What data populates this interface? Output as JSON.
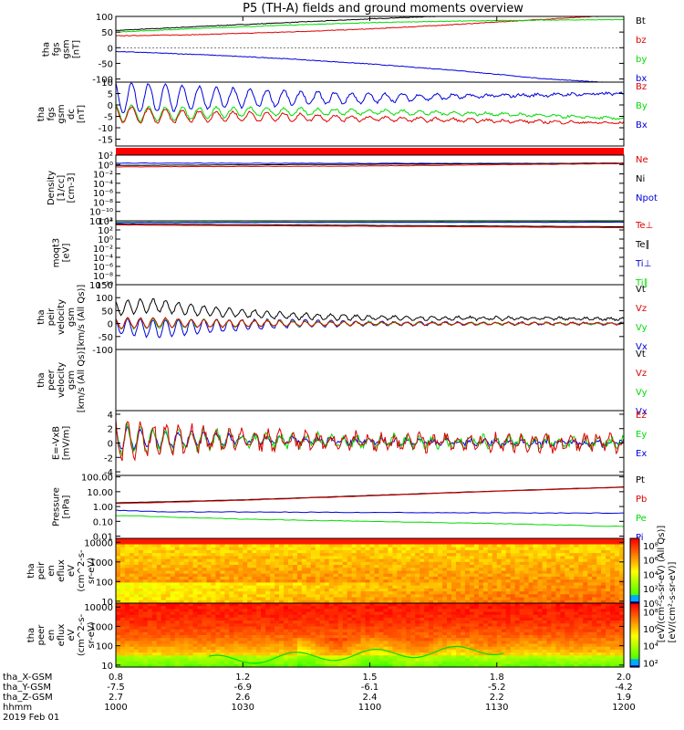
{
  "title": "P5 (TH-A) fields and ground moments overview",
  "colors": {
    "black": "#000000",
    "red": "#e00000",
    "green": "#00dd00",
    "blue": "#0000dd"
  },
  "chart_data": {
    "type": "line",
    "x_axis": {
      "rows": [
        {
          "label": "tha_X-GSM",
          "values": [
            "0.8",
            "1.2",
            "1.5",
            "1.8",
            "2.0"
          ]
        },
        {
          "label": "tha_Y-GSM",
          "values": [
            "-7.5",
            "-6.9",
            "-6.1",
            "-5.2",
            "-4.2"
          ]
        },
        {
          "label": "tha_Z-GSM",
          "values": [
            "2.7",
            "2.6",
            "2.4",
            "2.2",
            "1.9"
          ]
        },
        {
          "label": "hhmm",
          "values": [
            "1000",
            "1030",
            "1100",
            "1130",
            "1200"
          ]
        }
      ],
      "date_label": "2019 Feb 01",
      "time_range_min": [
        0,
        120
      ],
      "tick_minutes": [
        0,
        30,
        60,
        90,
        120
      ]
    },
    "panels": [
      {
        "id": "fgs_gsm",
        "ylabel": [
          "tha",
          "fgs",
          "gsm",
          "[nT]"
        ],
        "ylim": [
          -110,
          100
        ],
        "yticks": [
          "100",
          "50",
          "0",
          "-50",
          "-100"
        ],
        "ytick_values": [
          100,
          50,
          0,
          -50,
          -100
        ],
        "log": false,
        "legend": [
          {
            "label": "Bt",
            "color": "#000000"
          },
          {
            "label": "bz",
            "color": "#e00000"
          },
          {
            "label": "by",
            "color": "#00dd00"
          },
          {
            "label": "bx",
            "color": "#0000dd"
          }
        ],
        "series": [
          {
            "name": "Bt",
            "color": "#000000",
            "t": [
              0,
              20,
              40,
              60,
              80,
              100,
              110
            ],
            "y": [
              55,
              68,
              80,
              92,
              103,
              110,
              115
            ],
            "noise": 1
          },
          {
            "name": "bz",
            "color": "#e00000",
            "t": [
              0,
              20,
              40,
              60,
              80,
              100,
              120
            ],
            "y": [
              38,
              42,
              50,
              60,
              74,
              90,
              105
            ],
            "noise": 1
          },
          {
            "name": "by",
            "color": "#00dd00",
            "t": [
              0,
              20,
              40,
              60,
              80,
              100,
              120
            ],
            "y": [
              50,
              62,
              72,
              80,
              85,
              88,
              90
            ],
            "noise": 1
          },
          {
            "name": "bx",
            "color": "#0000dd",
            "t": [
              0,
              20,
              40,
              60,
              80,
              100,
              120
            ],
            "y": [
              -12,
              -22,
              -35,
              -52,
              -72,
              -98,
              -115
            ],
            "noise": 1
          }
        ]
      },
      {
        "id": "fgs_gsm_dc",
        "ylabel": [
          "tha",
          "fgs",
          "gsm",
          "dc",
          "[nT]"
        ],
        "ylim": [
          -18,
          10
        ],
        "yticks": [
          "10",
          "5",
          "0",
          "-5",
          "-10",
          "-15"
        ],
        "ytick_values": [
          10,
          5,
          0,
          -5,
          -10,
          -15
        ],
        "log": false,
        "legend": [
          {
            "label": "Bz",
            "color": "#e00000"
          },
          {
            "label": "By",
            "color": "#00dd00"
          },
          {
            "label": "Bx",
            "color": "#0000dd"
          }
        ],
        "series": [
          {
            "name": "Bx",
            "color": "#0000dd",
            "t": [
              0,
              10,
              30,
              60,
              90,
              120
            ],
            "y": [
              3,
              3,
              3,
              3,
              4,
              5
            ],
            "osc_amp": [
              7,
              6,
              4,
              2,
              0.5,
              0.3
            ],
            "period": 4,
            "noise": 0.6
          },
          {
            "name": "By",
            "color": "#00dd00",
            "t": [
              0,
              10,
              30,
              60,
              90,
              120
            ],
            "y": [
              -3,
              -4,
              -3,
              -3,
              -4,
              -6
            ],
            "osc_amp": [
              4,
              3,
              2,
              1,
              0.5,
              0.3
            ],
            "period": 4,
            "noise": 0.5
          },
          {
            "name": "Bz",
            "color": "#e00000",
            "t": [
              0,
              10,
              30,
              60,
              90,
              120
            ],
            "y": [
              -4,
              -5,
              -5,
              -6,
              -7,
              -8
            ],
            "osc_amp": [
              4,
              3,
              2,
              1,
              0.5,
              0.3
            ],
            "period": 4,
            "noise": 0.5
          }
        ]
      },
      {
        "id": "density",
        "ylabel": [
          "Density",
          "[1/cc]",
          "[cm-3]"
        ],
        "ylim": [
          -12,
          2
        ],
        "yticks": [
          "10²",
          "10⁰",
          "10⁻²",
          "10⁻⁴",
          "10⁻⁶",
          "10⁻⁸",
          "10⁻¹⁰",
          "10⁻¹²"
        ],
        "ytick_values": [
          2,
          0,
          -2,
          -4,
          -6,
          -8,
          -10,
          -12
        ],
        "log": true,
        "legend": [
          {
            "label": "Ne",
            "color": "#e00000"
          },
          {
            "label": "Ni",
            "color": "#000000"
          },
          {
            "label": "Npot",
            "color": "#0000dd"
          }
        ],
        "series": [
          {
            "name": "Npot",
            "color": "#0000dd",
            "t": [
              0,
              120
            ],
            "y": [
              0.3,
              0.2
            ],
            "noise": 0.05
          },
          {
            "name": "Ni",
            "color": "#000000",
            "t": [
              0,
              120
            ],
            "y": [
              -0.2,
              0.3
            ],
            "noise": 0.03
          },
          {
            "name": "Ne",
            "color": "#e00000",
            "t": [
              0,
              60,
              120
            ],
            "y": [
              -0.5,
              -0.3,
              0.2
            ],
            "noise": 0.05
          }
        ]
      },
      {
        "id": "temperature",
        "ylabel": [
          "moqt3",
          "[eV]"
        ],
        "ylim": [
          -10,
          4
        ],
        "yticks": [
          "10⁴",
          "10²",
          "10⁰",
          "10⁻²",
          "10⁻⁴",
          "10⁻⁶",
          "10⁻⁸",
          "10⁻¹⁰"
        ],
        "ytick_values": [
          4,
          2,
          0,
          -2,
          -4,
          -6,
          -8,
          -10
        ],
        "log": true,
        "legend": [
          {
            "label": "Te⊥",
            "color": "#e00000"
          },
          {
            "label": "Te∥",
            "color": "#000000"
          },
          {
            "label": "Ti⊥",
            "color": "#0000dd"
          },
          {
            "label": "Ti∥",
            "color": "#00dd00"
          }
        ],
        "series": [
          {
            "name": "Ti∥",
            "color": "#00dd00",
            "t": [
              0,
              120
            ],
            "y": [
              3.7,
              3.8
            ],
            "noise": 0.03
          },
          {
            "name": "Ti⊥",
            "color": "#0000dd",
            "t": [
              0,
              120
            ],
            "y": [
              3.6,
              3.7
            ],
            "noise": 0.03
          },
          {
            "name": "Te∥",
            "color": "#000000",
            "t": [
              0,
              120
            ],
            "y": [
              3.3,
              2.7
            ],
            "noise": 0.03
          },
          {
            "name": "Te⊥",
            "color": "#e00000",
            "t": [
              0,
              120
            ],
            "y": [
              3.1,
              2.5
            ],
            "noise": 0.03
          }
        ]
      },
      {
        "id": "peir_velocity",
        "ylabel": [
          "tha",
          "peir",
          "velocity",
          "gsm",
          "[km/s (All Qs)]"
        ],
        "ylim": [
          -100,
          150
        ],
        "yticks": [
          "150",
          "100",
          "50",
          "0",
          "-50",
          "-100"
        ],
        "ytick_values": [
          150,
          100,
          50,
          0,
          -50,
          -100
        ],
        "log": false,
        "legend": [
          {
            "label": "Vt",
            "color": "#000000"
          },
          {
            "label": "Vz",
            "color": "#e00000"
          },
          {
            "label": "Vy",
            "color": "#00dd00"
          },
          {
            "label": "Vx",
            "color": "#0000dd"
          }
        ],
        "series": [
          {
            "name": "Vt",
            "color": "#000000",
            "t": [
              0,
              10,
              20,
              40,
              60,
              120
            ],
            "y": [
              60,
              70,
              50,
              30,
              22,
              18
            ],
            "osc_amp": [
              30,
              25,
              15,
              8,
              5,
              4
            ],
            "period": 3,
            "noise": 4
          },
          {
            "name": "Vx",
            "color": "#0000dd",
            "t": [
              0,
              10,
              20,
              40,
              60,
              120
            ],
            "y": [
              -10,
              -20,
              -10,
              0,
              0,
              0
            ],
            "osc_amp": [
              30,
              35,
              20,
              8,
              5,
              4
            ],
            "period": 3,
            "noise": 3
          },
          {
            "name": "Vy",
            "color": "#00dd00",
            "t": [
              0,
              10,
              20,
              40,
              60,
              120
            ],
            "y": [
              0,
              0,
              0,
              0,
              0,
              0
            ],
            "osc_amp": [
              20,
              18,
              12,
              6,
              4,
              3
            ],
            "period": 3,
            "noise": 3
          },
          {
            "name": "Vz",
            "color": "#e00000",
            "t": [
              0,
              10,
              20,
              40,
              60,
              120
            ],
            "y": [
              0,
              5,
              0,
              0,
              0,
              0
            ],
            "osc_amp": [
              20,
              18,
              12,
              6,
              4,
              3
            ],
            "period": 3,
            "noise": 3
          }
        ]
      },
      {
        "id": "peer_velocity",
        "ylabel": [
          "tha",
          "peer",
          "velocity",
          "gsm",
          "[km/s (All Qs)]"
        ],
        "ylim": [
          0,
          1
        ],
        "yticks": [],
        "ytick_values": [],
        "log": false,
        "legend": [
          {
            "label": "Vt",
            "color": "#000000"
          },
          {
            "label": "Vz",
            "color": "#e00000"
          },
          {
            "label": "Vy",
            "color": "#00dd00"
          },
          {
            "label": "Vx",
            "color": "#0000dd"
          }
        ],
        "series": []
      },
      {
        "id": "efield",
        "ylabel": [
          "E=-VxB",
          "[mV/m]"
        ],
        "ylim": [
          -4.5,
          4.5
        ],
        "yticks": [
          "4",
          "2",
          "0",
          "-2",
          "-4"
        ],
        "ytick_values": [
          4,
          2,
          0,
          -2,
          -4
        ],
        "log": false,
        "legend": [
          {
            "label": "Ez",
            "color": "#e00000"
          },
          {
            "label": "Ey",
            "color": "#00dd00"
          },
          {
            "label": "Ex",
            "color": "#0000dd"
          }
        ],
        "series": [
          {
            "name": "Ex",
            "color": "#0000dd",
            "t": [
              0,
              20,
              60,
              120
            ],
            "y": [
              0.5,
              0.5,
              0.2,
              0
            ],
            "osc_amp": [
              1.5,
              1.2,
              0.5,
              0.3
            ],
            "period": 3,
            "noise": 0.4
          },
          {
            "name": "Ey",
            "color": "#00dd00",
            "t": [
              0,
              20,
              60,
              120
            ],
            "y": [
              0.5,
              0.5,
              0.2,
              0
            ],
            "osc_amp": [
              2,
              1.5,
              0.8,
              0.6
            ],
            "period": 3,
            "noise": 0.6
          },
          {
            "name": "Ez",
            "color": "#e00000",
            "t": [
              0,
              20,
              60,
              120
            ],
            "y": [
              0.5,
              0.5,
              0.2,
              0
            ],
            "osc_amp": [
              2.5,
              2,
              1,
              0.8
            ],
            "period": 3,
            "noise": 0.8
          }
        ]
      },
      {
        "id": "pressure",
        "ylabel": [
          "Pressure",
          "[nPa]"
        ],
        "ylim": [
          -2.15,
          2.1
        ],
        "yticks": [
          "100.00",
          "10.00",
          "1.00",
          "0.10",
          "0.01"
        ],
        "ytick_values": [
          2,
          1,
          0,
          -1,
          -2
        ],
        "log": true,
        "legend": [
          {
            "label": "Pt",
            "color": "#000000"
          },
          {
            "label": "Pb",
            "color": "#e00000"
          },
          {
            "label": "Pe",
            "color": "#00dd00"
          },
          {
            "label": "Pi",
            "color": "#0000dd"
          }
        ],
        "series": [
          {
            "name": "Pt",
            "color": "#000000",
            "t": [
              0,
              30,
              60,
              90,
              120
            ],
            "y": [
              0.25,
              0.45,
              0.75,
              1.05,
              1.32
            ],
            "noise": 0.01
          },
          {
            "name": "Pb",
            "color": "#e00000",
            "t": [
              0,
              30,
              60,
              90,
              120
            ],
            "y": [
              0.2,
              0.42,
              0.72,
              1.03,
              1.3
            ],
            "noise": 0.01
          },
          {
            "name": "Pi",
            "color": "#0000dd",
            "t": [
              0,
              10,
              60,
              120
            ],
            "y": [
              -0.25,
              -0.35,
              -0.4,
              -0.45
            ],
            "noise": 0.02
          },
          {
            "name": "Pe",
            "color": "#00dd00",
            "t": [
              0,
              30,
              60,
              90,
              120
            ],
            "y": [
              -0.6,
              -0.85,
              -1.0,
              -1.15,
              -1.35
            ],
            "noise": 0.02
          }
        ]
      },
      {
        "id": "peir_spec",
        "type": "heatmap",
        "ylabel": [
          "tha",
          "peir",
          "en",
          "eflux",
          "eV",
          "(cm^2-s-",
          "sr-eV)"
        ],
        "ylim": [
          0.9,
          4.2
        ],
        "yticks": [
          "10000",
          "1000",
          "100",
          "10"
        ],
        "ytick_values": [
          4,
          3,
          2,
          1
        ],
        "log": true,
        "colorbar": "ion"
      },
      {
        "id": "peer_spec",
        "type": "heatmap",
        "ylabel": [
          "tha",
          "peer",
          "en",
          "eflux",
          "eV",
          "(cm^2-s-",
          "sr-eV)"
        ],
        "ylim": [
          0.9,
          4.2
        ],
        "yticks": [
          "10000",
          "1000",
          "100",
          "10"
        ],
        "ytick_values": [
          4,
          3,
          2,
          1
        ],
        "log": true,
        "colorbar": "electron"
      }
    ],
    "colorbars": [
      {
        "id": "ion",
        "ticks": [
          "10⁸",
          "10⁶",
          "10⁴",
          "10²",
          "10⁰"
        ],
        "tick_values": [
          8,
          6,
          4,
          2,
          0
        ],
        "range": [
          0,
          9
        ]
      },
      {
        "id": "electron",
        "ticks": [
          "10⁸",
          "10⁶",
          "10⁴",
          "10²"
        ],
        "tick_values": [
          8,
          6,
          4,
          2
        ],
        "range": [
          1.5,
          9
        ]
      }
    ],
    "colorbar_label": "[eV/(cm²-s-sr-eV)]",
    "colorbar_label_alt": "[eV/(cm²-s-sr-eV) (All Qs)]"
  }
}
